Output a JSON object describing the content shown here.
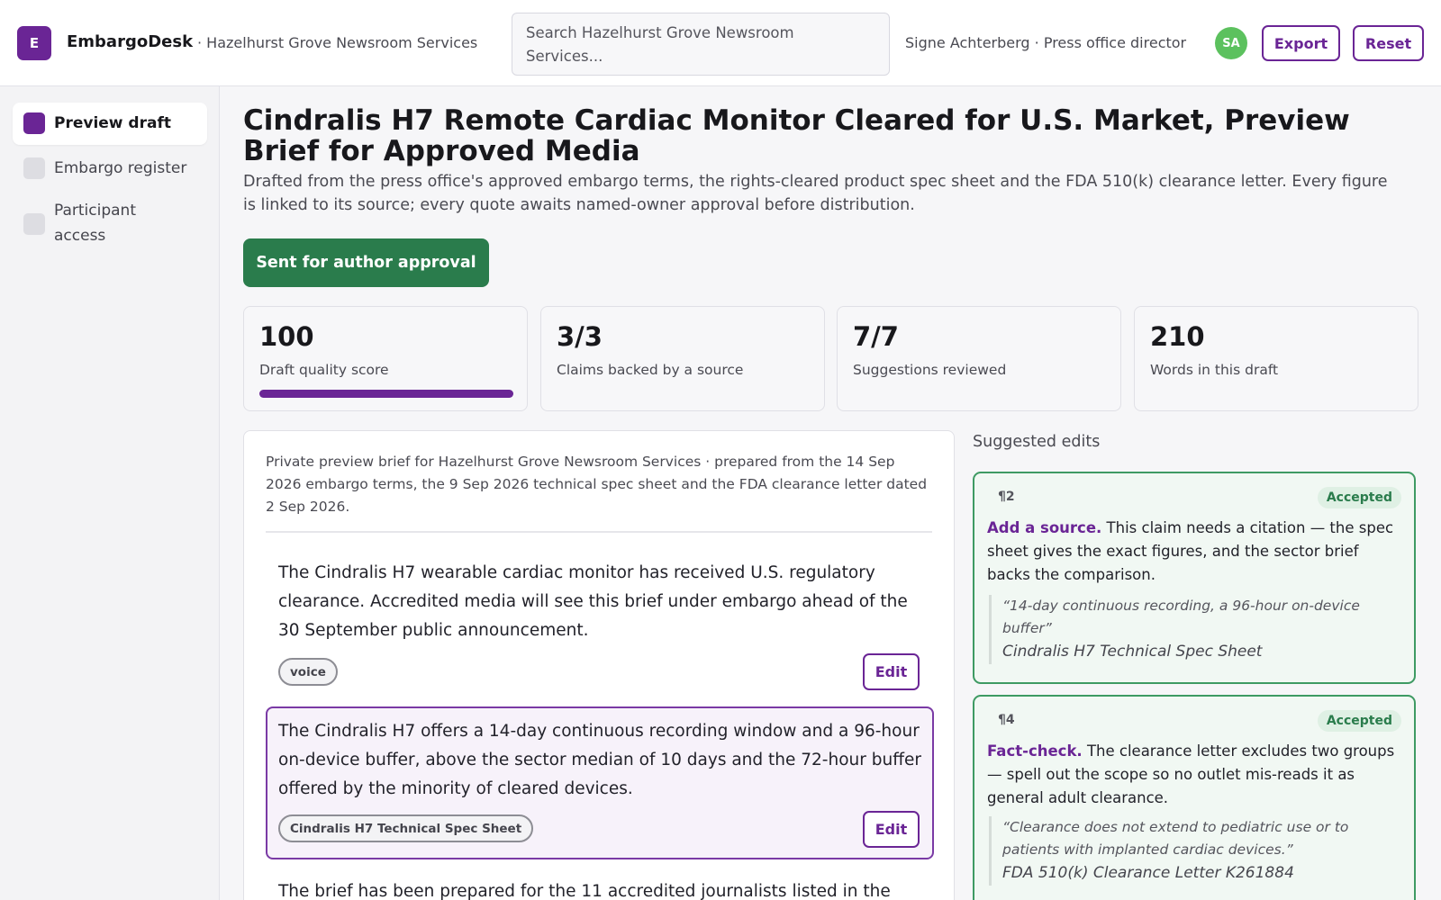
{
  "app": {
    "logo_letter": "E",
    "name": "EmbargoDesk",
    "org": "· Hazelhurst Grove Newsroom Services"
  },
  "search": {
    "placeholder": "Search Hazelhurst Grove Newsroom Services..."
  },
  "user": {
    "label": "Signe Achterberg · Press office director",
    "initials": "SA"
  },
  "toolbar": {
    "export_label": "Export",
    "reset_label": "Reset"
  },
  "sidebar": {
    "items": [
      {
        "label": "Preview draft",
        "active": true
      },
      {
        "label": "Embargo register",
        "active": false
      },
      {
        "label": "Participant access",
        "active": false
      }
    ]
  },
  "main": {
    "title": "Cindralis H7 Remote Cardiac Monitor Cleared for U.S. Market, Preview Brief for Approved Media",
    "subtitle": "Drafted from the press office's approved embargo terms, the rights-cleared product spec sheet and the FDA 510(k) clearance letter. Every figure is linked to its source; every quote awaits named-owner approval before distribution.",
    "status_button": "Sent for author approval"
  },
  "stats": [
    {
      "value": "100",
      "label": "Draft quality score",
      "progress": 1.0
    },
    {
      "value": "3/3",
      "label": "Claims backed by a source"
    },
    {
      "value": "7/7",
      "label": "Suggestions reviewed"
    },
    {
      "value": "210",
      "label": "Words in this draft"
    }
  ],
  "draft": {
    "meta": "Private preview brief for Hazelhurst Grove Newsroom Services · prepared from the 14 Sep 2026 embargo terms, the 9 Sep 2026 technical spec sheet and the FDA clearance letter dated 2 Sep 2026.",
    "edit_label": "Edit",
    "paragraphs": [
      {
        "text": "The Cindralis H7 wearable cardiac monitor has received U.S. regulatory clearance. Accredited media will see this brief under embargo ahead of the 30 September public announcement.",
        "tag": "voice"
      },
      {
        "text": "The Cindralis H7 offers a 14-day continuous recording window and a 96-hour on-device buffer, above the sector median of 10 days and the 72-hour buffer offered by the minority of cleared devices.",
        "tag": "Cindralis H7 Technical Spec Sheet"
      },
      {
        "text": "The brief has been prepared for the 11 accredited journalists listed in the"
      }
    ]
  },
  "suggestions": {
    "title": "Suggested edits",
    "cards": [
      {
        "para": "¶2",
        "status": "Accepted",
        "lead": "Add a source.",
        "text": " This claim needs a citation — the spec sheet gives the exact figures, and the sector brief backs the comparison.",
        "quote": "“14-day continuous recording, a 96-hour on-device buffer”",
        "source": "Cindralis H7 Technical Spec Sheet"
      },
      {
        "para": "¶4",
        "status": "Accepted",
        "lead": "Fact-check.",
        "text": " The clearance letter excludes two groups — spell out the scope so no outlet mis-reads it as general adult clearance.",
        "quote": "“Clearance does not extend to pediatric use or to patients with implanted cardiac devices.”",
        "source": "FDA 510(k) Clearance Letter K261884"
      }
    ]
  },
  "colors": {
    "brand": "#6a2595",
    "success": "#2a7c4c",
    "avatar": "#5cc15e",
    "accepted_border": "#3e9a63"
  }
}
